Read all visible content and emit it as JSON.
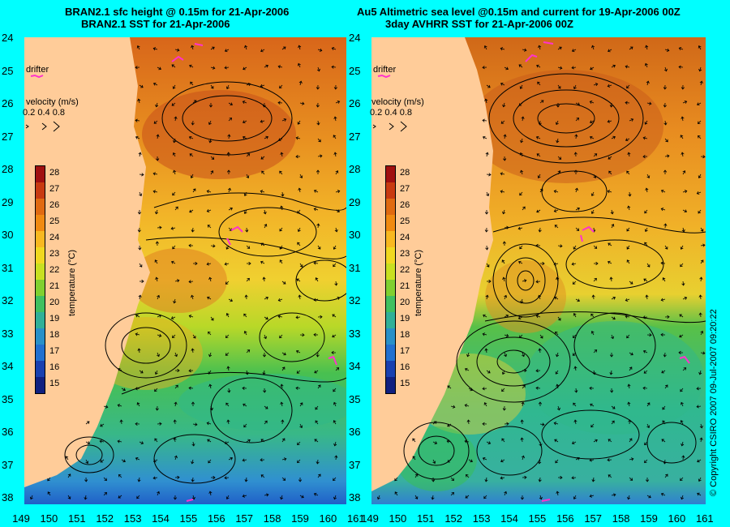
{
  "left": {
    "title1": "BRAN2.1 sfc height @ 0.15m for 21-Apr-2006",
    "title2": "BRAN2.1 SST for 21-Apr-2006"
  },
  "right": {
    "title1": "Au5 Altimetric sea level  @0.15m and current for 19-Apr-2006 00Z",
    "title2": "3day AVHRR SST for 21-Apr-2006 00Z"
  },
  "y_ticks": [
    "24",
    "25",
    "26",
    "27",
    "28",
    "29",
    "30",
    "31",
    "32",
    "33",
    "34",
    "35",
    "36",
    "37",
    "38"
  ],
  "x_ticks": [
    "149",
    "150",
    "151",
    "152",
    "153",
    "154",
    "155",
    "156",
    "157",
    "158",
    "159",
    "160",
    "161"
  ],
  "legend": {
    "drifter": "drifter",
    "velocity_title": "velocity (m/s)",
    "velocity_values": "0.2 0.4 0.8"
  },
  "colorbar": {
    "ticks": [
      "28",
      "27",
      "26",
      "25",
      "24",
      "23",
      "22",
      "21",
      "20",
      "19",
      "18",
      "17",
      "16",
      "15"
    ],
    "label": "temperature (°C)",
    "colors": [
      "#a01010",
      "#c83a10",
      "#e06a10",
      "#f08a10",
      "#f8b820",
      "#f0d820",
      "#c8e020",
      "#80d030",
      "#40c060",
      "#30b098",
      "#2890c8",
      "#2070d0",
      "#1840b0",
      "#102080"
    ]
  },
  "copyright": "© Copyright CSIRO 2007   09-Jul-2007 09:20:22",
  "colors": {
    "background": "#00ffff",
    "land": "#ffcc99",
    "drifter": "#ff33cc"
  }
}
